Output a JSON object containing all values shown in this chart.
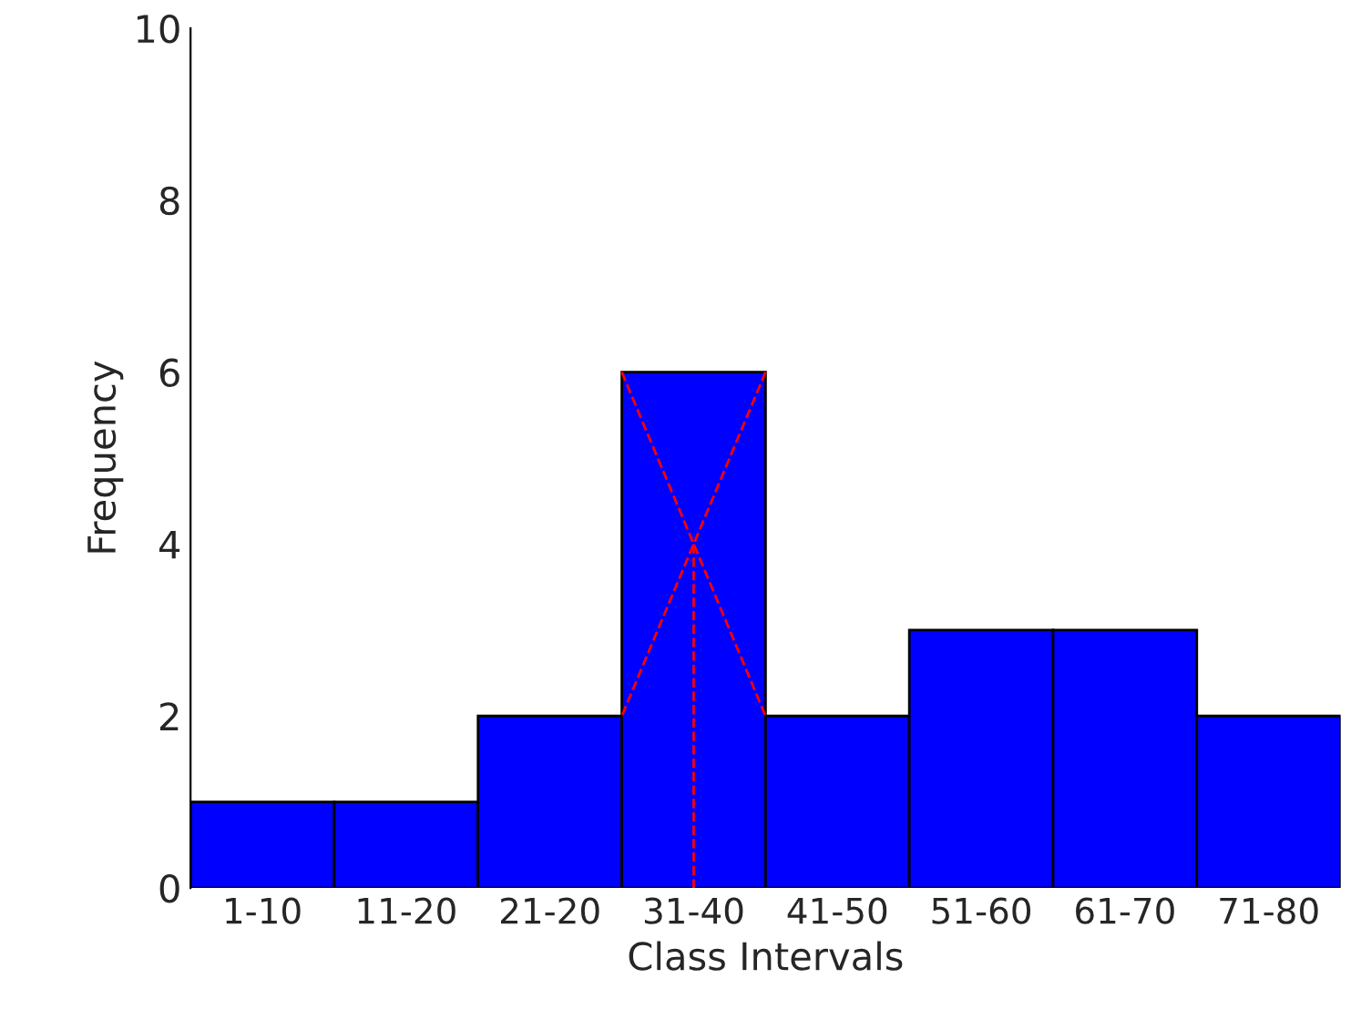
{
  "chart_data": {
    "type": "bar",
    "xlabel": "Class Intervals",
    "ylabel": "Frequency",
    "categories": [
      "1-10",
      "11-20",
      "21-20",
      "31-40",
      "41-50",
      "51-60",
      "61-70",
      "71-80"
    ],
    "values": [
      1,
      1,
      2,
      6,
      2,
      3,
      3,
      2
    ],
    "color": "#0000ff",
    "ylim": [
      0,
      10
    ],
    "yticks": [
      0,
      2,
      4,
      6,
      8,
      10
    ],
    "grid": false
  }
}
